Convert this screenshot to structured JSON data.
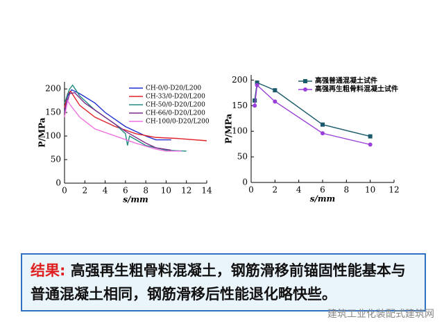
{
  "chart_data": [
    {
      "type": "line",
      "xlabel": "s/mm",
      "ylabel": "P/MPa",
      "xlim": [
        0,
        14
      ],
      "xticks": [
        0,
        2,
        4,
        6,
        8,
        10,
        12,
        14
      ],
      "ylim": [
        0,
        215
      ],
      "yticks": [
        0,
        50,
        100,
        150,
        200
      ],
      "legend": "upper right",
      "series": [
        {
          "name": "CH-0/0-D20/L200",
          "color": "#1f2fd0",
          "x": [
            0,
            0.3,
            0.7,
            1.5,
            3,
            4,
            6,
            8,
            9,
            10.5
          ],
          "values": [
            150,
            185,
            198,
            190,
            170,
            150,
            120,
            100,
            92,
            92
          ]
        },
        {
          "name": "CH-33/0-D20/L200",
          "color": "#e0202a",
          "x": [
            0,
            0.3,
            0.6,
            1.5,
            3,
            5,
            7,
            9,
            11,
            14
          ],
          "values": [
            160,
            190,
            195,
            165,
            140,
            120,
            105,
            97,
            95,
            90
          ]
        },
        {
          "name": "CH-50/0-D20/L200",
          "color": "#208a80",
          "x": [
            0,
            0.5,
            0.8,
            1.5,
            3,
            5,
            6,
            6.2,
            6.4,
            8,
            10,
            12
          ],
          "values": [
            170,
            200,
            208,
            185,
            155,
            125,
            105,
            80,
            100,
            80,
            70,
            68
          ]
        },
        {
          "name": "CH-66/0-D20/L200",
          "color": "#7a2a8a",
          "x": [
            0,
            0.5,
            1,
            2,
            4,
            6,
            8,
            9,
            10.5
          ],
          "values": [
            150,
            190,
            192,
            170,
            140,
            110,
            85,
            75,
            70
          ]
        },
        {
          "name": "CH-100/0-D20/L200",
          "color": "#f070e0",
          "x": [
            0,
            0.3,
            0.6,
            1.5,
            3,
            5,
            7,
            9,
            10,
            11.5
          ],
          "values": [
            140,
            175,
            165,
            140,
            115,
            100,
            85,
            72,
            68,
            68
          ]
        }
      ]
    },
    {
      "type": "line",
      "xlabel": "s/mm",
      "ylabel": "P/MPa",
      "xlim": [
        0,
        12
      ],
      "xticks": [
        0,
        2,
        4,
        6,
        8,
        10,
        12
      ],
      "ylim": [
        0,
        210
      ],
      "yticks": [
        0,
        50,
        100,
        150,
        200
      ],
      "legend": "upper right",
      "x": [
        0.3,
        0.5,
        2,
        6,
        10
      ],
      "series": [
        {
          "name": "高强普通混凝土试件",
          "color": "#1a5a6a",
          "marker": "square",
          "values": [
            160,
            195,
            180,
            113,
            90
          ]
        },
        {
          "name": "高强再生粗骨料混凝土试件",
          "color": "#9a40d8",
          "marker": "circle",
          "values": [
            150,
            190,
            158,
            96,
            74
          ]
        }
      ]
    }
  ],
  "conclusion": {
    "label": "结果:",
    "text": "高强再生粗骨料混凝土，钢筋滑移前锚固性能基本与普通混凝土相同，钢筋滑移后性能退化略快些。"
  },
  "watermark": "建筑工业化装配式建筑网"
}
